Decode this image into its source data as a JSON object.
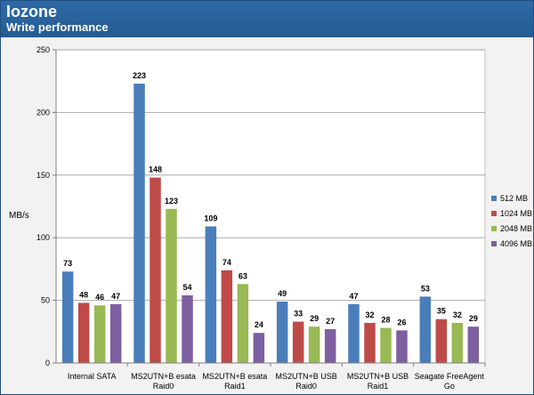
{
  "header": {
    "title": "Iozone",
    "subtitle": "Write performance"
  },
  "colors": {
    "header_bg": "#2a63a0",
    "plot_bg": "#ffffff",
    "grid": "#9a9a9a",
    "series": [
      "#4a7ebb",
      "#be4b48",
      "#98b954",
      "#7d60a0"
    ]
  },
  "chart_data": {
    "type": "bar",
    "title": "Iozone",
    "subtitle": "Write performance",
    "xlabel": "",
    "ylabel": "MB/s",
    "ylim": [
      0,
      250
    ],
    "yticks": [
      0,
      50,
      100,
      150,
      200,
      250
    ],
    "grid": true,
    "legend": "right",
    "categories": [
      [
        "Internal SATA"
      ],
      [
        "MS2UTN+B esata",
        "Raid0"
      ],
      [
        "MS2UTN+B esata",
        "Raid1"
      ],
      [
        "MS2UTN+B USB",
        "Raid0"
      ],
      [
        "MS2UTN+B USB",
        "Raid1"
      ],
      [
        "Seagate FreeAgent",
        "Go"
      ]
    ],
    "series": [
      {
        "name": "512 MB",
        "values": [
          73,
          223,
          109,
          49,
          47,
          53
        ]
      },
      {
        "name": "1024 MB",
        "values": [
          48,
          148,
          74,
          33,
          32,
          35
        ]
      },
      {
        "name": "2048 MB",
        "values": [
          46,
          123,
          63,
          29,
          28,
          32
        ]
      },
      {
        "name": "4096 MB",
        "values": [
          47,
          54,
          24,
          27,
          26,
          29
        ]
      }
    ]
  }
}
